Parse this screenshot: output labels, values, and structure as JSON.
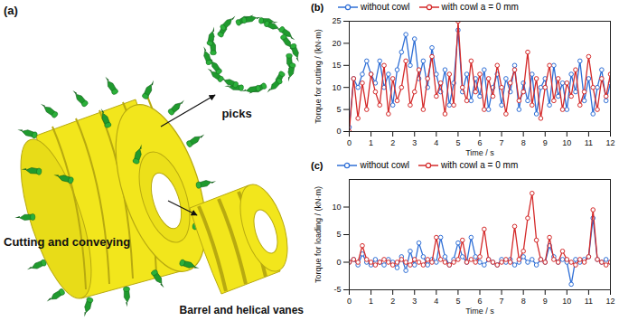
{
  "diagram": {
    "panel_label": "(a)",
    "labels": {
      "picks": "picks",
      "assembly": "Cutting and conveying",
      "barrel": "Barrel and helical vanes"
    }
  },
  "chart_data": [
    {
      "type": "line",
      "title": "(b)",
      "x_label": "Time / s",
      "y_label": "Torque for cutting / (kN·m)",
      "xlim": [
        0,
        12
      ],
      "xticks": [
        0,
        1,
        2,
        3,
        4,
        5,
        6,
        7,
        8,
        9,
        10,
        11,
        12
      ],
      "ylim": [
        0,
        25
      ],
      "yticks": [
        0,
        5,
        10,
        15,
        20,
        25
      ],
      "grid": false,
      "legend": "top",
      "marker": "circle",
      "x": [
        0,
        0.2,
        0.4,
        0.6,
        0.8,
        1,
        1.2,
        1.4,
        1.6,
        1.8,
        2,
        2.2,
        2.4,
        2.6,
        2.8,
        3,
        3.2,
        3.4,
        3.6,
        3.8,
        4,
        4.2,
        4.4,
        4.6,
        4.8,
        5,
        5.2,
        5.4,
        5.6,
        5.8,
        6,
        6.2,
        6.4,
        6.6,
        6.8,
        7,
        7.2,
        7.4,
        7.6,
        7.8,
        8,
        8.2,
        8.4,
        8.6,
        8.8,
        9,
        9.2,
        9.4,
        9.6,
        9.8,
        10,
        10.2,
        10.4,
        10.6,
        10.8,
        11,
        11.2,
        11.4,
        11.6,
        11.8,
        12
      ],
      "series": [
        {
          "name": "without cowl",
          "color": "#2f6fd6",
          "marker": "circle",
          "values": [
            1,
            12,
            10,
            13,
            16,
            13,
            11,
            16,
            10,
            13,
            6,
            14,
            18,
            22,
            15,
            21,
            12,
            16,
            10,
            19,
            13,
            9,
            14,
            6,
            11,
            23,
            9,
            13,
            7,
            12,
            8,
            14,
            5,
            10,
            13,
            6,
            12,
            9,
            15,
            5,
            11,
            7,
            13,
            4,
            10,
            12,
            6,
            15,
            8,
            11,
            5,
            13,
            9,
            16,
            7,
            12,
            4,
            10,
            14,
            7,
            11
          ]
        },
        {
          "name": "with cowl a = 0 mm",
          "color": "#d42a2a",
          "marker": "circle",
          "values": [
            0,
            12,
            3,
            11,
            5,
            13,
            9,
            6,
            15,
            4,
            12,
            7,
            10,
            16,
            6,
            9,
            14,
            5,
            12,
            17,
            8,
            11,
            4,
            13,
            6,
            25,
            10,
            7,
            16,
            9,
            13,
            5,
            12,
            8,
            15,
            10,
            4,
            11,
            14,
            7,
            9,
            18,
            6,
            12,
            3,
            10,
            15,
            7,
            12,
            5,
            11,
            8,
            14,
            6,
            9,
            17,
            10,
            5,
            12,
            8,
            13
          ]
        }
      ]
    },
    {
      "type": "line",
      "title": "(c)",
      "x_label": "Time / s",
      "y_label": "Torque for loading / (kN·m)",
      "xlim": [
        0,
        12
      ],
      "xticks": [
        0,
        1,
        2,
        3,
        4,
        5,
        6,
        7,
        8,
        9,
        10,
        11,
        12
      ],
      "ylim": [
        -5,
        15
      ],
      "yticks": [
        -5,
        0,
        5,
        10
      ],
      "grid": false,
      "legend": "top",
      "marker": "circle",
      "x": [
        0,
        0.2,
        0.4,
        0.6,
        0.8,
        1,
        1.2,
        1.4,
        1.6,
        1.8,
        2,
        2.2,
        2.4,
        2.6,
        2.8,
        3,
        3.2,
        3.4,
        3.6,
        3.8,
        4,
        4.2,
        4.4,
        4.6,
        4.8,
        5,
        5.2,
        5.4,
        5.6,
        5.8,
        6,
        6.2,
        6.4,
        6.6,
        6.8,
        7,
        7.2,
        7.4,
        7.6,
        7.8,
        8,
        8.2,
        8.4,
        8.6,
        8.8,
        9,
        9.2,
        9.4,
        9.6,
        9.8,
        10,
        10.2,
        10.4,
        10.6,
        10.8,
        11,
        11.2,
        11.4,
        11.6,
        11.8,
        12
      ],
      "series": [
        {
          "name": "without cowl",
          "color": "#2f6fd6",
          "marker": "circle",
          "values": [
            0,
            0.5,
            -0.5,
            1.5,
            0,
            -0.5,
            0.5,
            0,
            -0.5,
            0.5,
            0,
            -1,
            1,
            -1.5,
            2,
            -0.5,
            3.5,
            1,
            -0.5,
            0.5,
            0,
            4.5,
            1,
            -0.5,
            0.5,
            3.5,
            1,
            0,
            4.5,
            1,
            0,
            -0.5,
            0.5,
            0,
            -0.5,
            0.5,
            0,
            0.5,
            -0.5,
            0,
            1,
            0,
            0.5,
            -0.5,
            0.5,
            0,
            3,
            1,
            0,
            0.5,
            0,
            -4,
            0.5,
            0,
            0.5,
            1,
            8,
            0.5,
            0,
            0.5,
            0
          ]
        },
        {
          "name": "with cowl a = 0 mm",
          "color": "#d42a2a",
          "marker": "circle",
          "values": [
            0,
            0.5,
            0,
            3,
            0.5,
            0,
            -0.5,
            0,
            0.5,
            0,
            -0.5,
            0,
            0.5,
            0,
            -0.5,
            0.5,
            0,
            -0.5,
            0.5,
            0,
            4.5,
            0.5,
            0,
            -0.5,
            0,
            0.5,
            4,
            0,
            0.5,
            0,
            1,
            6,
            0.5,
            0,
            -0.5,
            0,
            0.5,
            0,
            6.5,
            0.5,
            2,
            8,
            12.5,
            4,
            0.5,
            0,
            4.5,
            0.5,
            0,
            2,
            0.5,
            0,
            -0.5,
            0.5,
            0,
            1,
            9.5,
            0.5,
            0,
            -0.5,
            0
          ]
        }
      ]
    }
  ]
}
